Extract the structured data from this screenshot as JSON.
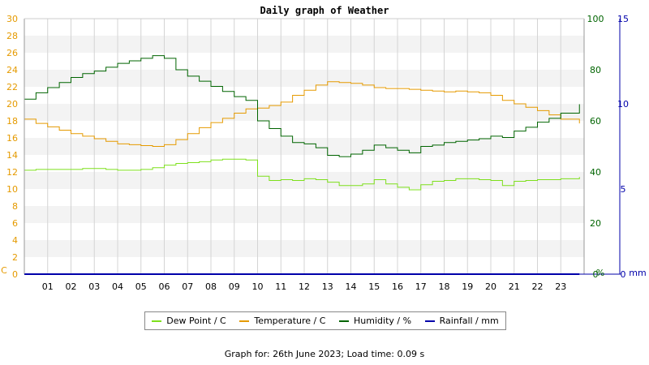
{
  "chart_data": {
    "type": "line",
    "title": "Daily graph of Weather",
    "x_tick_labels": [
      "01",
      "02",
      "03",
      "04",
      "05",
      "06",
      "07",
      "08",
      "09",
      "10",
      "11",
      "12",
      "13",
      "14",
      "15",
      "16",
      "17",
      "18",
      "19",
      "20",
      "21",
      "22",
      "23"
    ],
    "x_range": [
      0,
      24
    ],
    "axes": {
      "left": {
        "unit_label": "C",
        "ticks": [
          0,
          2,
          4,
          6,
          8,
          10,
          12,
          14,
          16,
          18,
          20,
          22,
          24,
          26,
          28,
          30
        ],
        "range": [
          0,
          30
        ],
        "color": "#e59a00"
      },
      "right_humidity": {
        "unit_label": "%",
        "ticks": [
          0,
          20,
          40,
          60,
          80,
          100
        ],
        "range": [
          0,
          100
        ],
        "color": "#006400"
      },
      "right_rain": {
        "unit_label": "mm",
        "ticks": [
          0,
          5,
          10,
          15
        ],
        "range": [
          0,
          15
        ],
        "color": "#0000aa"
      }
    },
    "grid": true,
    "series": [
      {
        "name": "Dew Point / C",
        "color": "#7ee01c",
        "axis": "left",
        "x": [
          0,
          0.5,
          1,
          1.5,
          2,
          2.5,
          3,
          3.5,
          4,
          4.5,
          5,
          5.5,
          6,
          6.5,
          7,
          7.5,
          8,
          8.5,
          9,
          9.5,
          10,
          10.5,
          11,
          11.5,
          12,
          12.5,
          13,
          13.5,
          14,
          14.5,
          15,
          15.5,
          16,
          16.5,
          17,
          17.5,
          18,
          18.5,
          19,
          19.5,
          20,
          20.5,
          21,
          21.5,
          22,
          22.5,
          23,
          23.8
        ],
        "values": [
          12.2,
          12.3,
          12.3,
          12.3,
          12.3,
          12.4,
          12.4,
          12.3,
          12.2,
          12.2,
          12.3,
          12.5,
          12.8,
          13.0,
          13.1,
          13.2,
          13.4,
          13.5,
          13.5,
          13.4,
          11.5,
          11.0,
          11.1,
          11.0,
          11.2,
          11.1,
          10.8,
          10.4,
          10.4,
          10.6,
          11.1,
          10.6,
          10.2,
          9.9,
          10.5,
          10.9,
          11.0,
          11.2,
          11.2,
          11.1,
          11.0,
          10.4,
          10.9,
          11.0,
          11.1,
          11.1,
          11.2,
          11.4
        ]
      },
      {
        "name": "Temperature / C",
        "color": "#e59a00",
        "axis": "left",
        "x": [
          0,
          0.5,
          1,
          1.5,
          2,
          2.5,
          3,
          3.5,
          4,
          4.5,
          5,
          5.5,
          6,
          6.5,
          7,
          7.5,
          8,
          8.5,
          9,
          9.5,
          10,
          10.5,
          11,
          11.5,
          12,
          12.5,
          13,
          13.5,
          14,
          14.5,
          15,
          15.5,
          16,
          16.5,
          17,
          17.5,
          18,
          18.5,
          19,
          19.5,
          20,
          20.5,
          21,
          21.5,
          22,
          22.5,
          23,
          23.8
        ],
        "values": [
          18.2,
          17.7,
          17.3,
          16.9,
          16.5,
          16.2,
          15.9,
          15.6,
          15.3,
          15.2,
          15.1,
          15.0,
          15.2,
          15.8,
          16.5,
          17.2,
          17.8,
          18.3,
          18.9,
          19.4,
          19.5,
          19.8,
          20.2,
          21.0,
          21.6,
          22.2,
          22.6,
          22.5,
          22.4,
          22.2,
          21.9,
          21.8,
          21.8,
          21.7,
          21.6,
          21.5,
          21.4,
          21.5,
          21.4,
          21.3,
          21.0,
          20.4,
          20.0,
          19.6,
          19.2,
          18.7,
          18.2,
          17.7
        ]
      },
      {
        "name": "Humidity / %",
        "color": "#006400",
        "axis": "right",
        "x": [
          0,
          0.5,
          1,
          1.5,
          2,
          2.5,
          3,
          3.5,
          4,
          4.5,
          5,
          5.5,
          6,
          6.5,
          7,
          7.5,
          8,
          8.5,
          9,
          9.5,
          10,
          10.5,
          11,
          11.5,
          12,
          12.5,
          13,
          13.5,
          14,
          14.5,
          15,
          15.5,
          16,
          16.5,
          17,
          17.5,
          18,
          18.5,
          19,
          19.5,
          20,
          20.5,
          21,
          21.5,
          22,
          22.5,
          23,
          23.8
        ],
        "values": [
          68.5,
          71.0,
          73.0,
          75.0,
          77.0,
          78.5,
          79.5,
          81.0,
          82.5,
          83.5,
          84.5,
          85.5,
          84.5,
          80.0,
          77.5,
          75.5,
          73.5,
          71.5,
          69.5,
          68.0,
          60.0,
          57.0,
          54.0,
          51.5,
          51.0,
          49.5,
          46.5,
          46.0,
          47.0,
          48.5,
          50.5,
          49.5,
          48.5,
          47.5,
          50.0,
          50.5,
          51.5,
          52.0,
          52.5,
          53.0,
          54.0,
          53.5,
          56.0,
          57.5,
          59.5,
          61.0,
          63.0,
          66.5
        ]
      },
      {
        "name": "Rainfall / mm",
        "color": "#0000aa",
        "axis": "right_rain",
        "x": [
          0,
          23.8
        ],
        "values": [
          0,
          0
        ]
      }
    ],
    "legend_position": "bottom-center"
  },
  "footer": "Graph for: 26th June 2023; Load time: 0.09 s"
}
